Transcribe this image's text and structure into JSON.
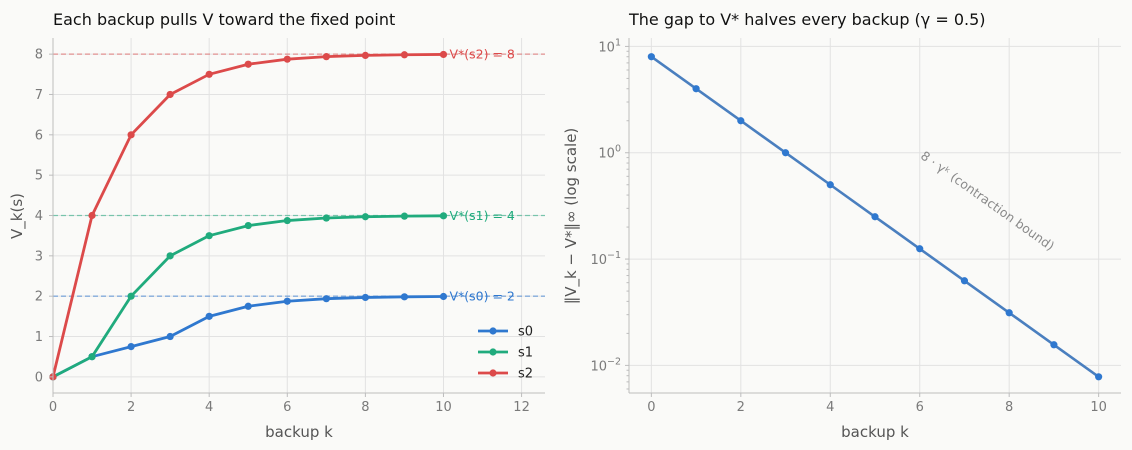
{
  "chart_data": [
    {
      "type": "line",
      "title": "Each backup pulls V toward the fixed point",
      "xlabel": "backup k",
      "ylabel": "V_k(s)",
      "xlim": [
        0,
        12.6
      ],
      "ylim": [
        -0.4,
        8.4
      ],
      "xticks": [
        0,
        2,
        4,
        6,
        8,
        10,
        12
      ],
      "yticks": [
        0,
        1,
        2,
        3,
        4,
        5,
        6,
        7,
        8
      ],
      "grid": true,
      "legend_position": "lower-right",
      "x": [
        0,
        1,
        2,
        3,
        4,
        5,
        6,
        7,
        8,
        9,
        10
      ],
      "series": [
        {
          "name": "s0",
          "color": "#2f78cf",
          "values": [
            0,
            0.5,
            0.75,
            1.0,
            1.5,
            1.75,
            1.875,
            1.9375,
            1.96875,
            1.984,
            1.992
          ]
        },
        {
          "name": "s1",
          "color": "#20ab7d",
          "values": [
            0,
            0.5,
            2.0,
            3.0,
            3.5,
            3.75,
            3.875,
            3.9375,
            3.96875,
            3.984,
            3.992
          ]
        },
        {
          "name": "s2",
          "color": "#dc4a4a",
          "values": [
            0,
            4.0,
            6.0,
            7.0,
            7.5,
            7.75,
            7.875,
            7.9375,
            7.96875,
            7.984,
            7.992
          ]
        }
      ],
      "reference_lines": [
        {
          "y": 2,
          "label": "V*(s0) = 2",
          "color": "#2f78cf"
        },
        {
          "y": 4,
          "label": "V*(s1) = 4",
          "color": "#20ab7d"
        },
        {
          "y": 8,
          "label": "V*(s2) = 8",
          "color": "#dc4a4a"
        }
      ]
    },
    {
      "type": "line",
      "title": "The gap to V* halves every backup (γ = 0.5)",
      "xlabel": "backup k",
      "ylabel": "‖V_k − V*‖∞ (log scale)",
      "yscale": "log",
      "xlim": [
        -0.5,
        10.5
      ],
      "ylim": [
        0.0055,
        12
      ],
      "xticks": [
        0,
        2,
        4,
        6,
        8,
        10
      ],
      "yticks": [
        0.01,
        0.1,
        1,
        10
      ],
      "ytick_labels": [
        {
          "base": "10",
          "exp": "−2"
        },
        {
          "base": "10",
          "exp": "−1"
        },
        {
          "base": "10",
          "exp": "0"
        },
        {
          "base": "10",
          "exp": "1"
        }
      ],
      "grid": true,
      "x": [
        0,
        1,
        2,
        3,
        4,
        5,
        6,
        7,
        8,
        9,
        10
      ],
      "series": [
        {
          "color": "#4a7fbf",
          "values": [
            8,
            4,
            2,
            1,
            0.5,
            0.25,
            0.125,
            0.0625,
            0.03125,
            0.015625,
            0.0078125
          ]
        }
      ],
      "bound": {
        "label": "8 · γᵏ (contraction bound)",
        "color": "#a9c1e0",
        "values": [
          8,
          4,
          2,
          1,
          0.5,
          0.25,
          0.125,
          0.0625,
          0.03125,
          0.015625,
          0.0078125
        ]
      }
    }
  ]
}
